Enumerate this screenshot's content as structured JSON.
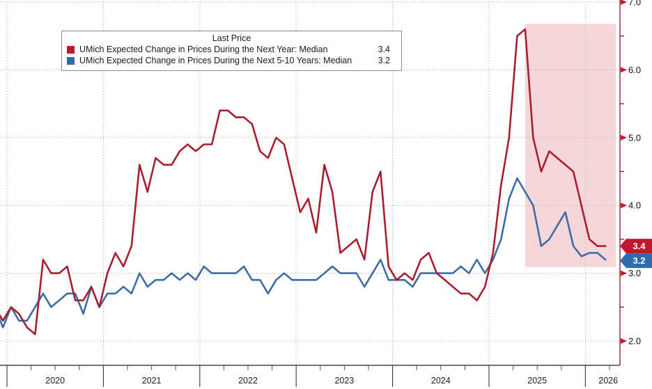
{
  "chart_data": {
    "type": "line",
    "title": "Last Price",
    "legend": {
      "title": "Last Price",
      "position": "top-left",
      "entries": [
        {
          "label": "UMich Expected Change in Prices During the Next Year: Median",
          "value": "3.4",
          "color": "#bb1a2c"
        },
        {
          "label": "UMich Expected Change in Prices During the Next 5-10 Years: Median",
          "value": "3.2",
          "color": "#2e6ca8"
        }
      ]
    },
    "grid": true,
    "x_axis": {
      "start_month": "2019-11",
      "interval": "monthly",
      "year_labels": [
        "2020",
        "2021",
        "2022",
        "2023",
        "2024",
        "2025",
        "2026"
      ]
    },
    "y_axis": {
      "side": "right",
      "ticks": [
        {
          "value": 7.0,
          "label": "7.0"
        },
        {
          "value": 6.0,
          "label": "6.0"
        },
        {
          "value": 5.0,
          "label": "5.0"
        },
        {
          "value": 4.0,
          "label": "4.0"
        },
        {
          "value": 3.0,
          "label": "3.0"
        },
        {
          "value": 2.0,
          "label": "2.0"
        }
      ],
      "minor_ticks": [
        6.5,
        5.5,
        4.5,
        3.5,
        2.5
      ],
      "axis_color": "#8a2732",
      "arrow_color": "#c01b2d"
    },
    "highlight_region": {
      "from_month": "2025-05",
      "to_month": "2026-04",
      "value_top": 6.68,
      "value_bottom": 3.09,
      "color": "#f6d7d9"
    },
    "series": [
      {
        "name": "UMich Expected Change in Prices During the Next Year: Median",
        "color": "#a71e2f",
        "badge_color": "#c01b2d",
        "last_value_label": "3.4",
        "start_month": "2019-11",
        "values": [
          2.5,
          2.3,
          2.5,
          2.4,
          2.2,
          2.1,
          3.2,
          3.0,
          3.0,
          3.1,
          2.6,
          2.6,
          2.8,
          2.5,
          3.0,
          3.3,
          3.1,
          3.4,
          4.6,
          4.2,
          4.7,
          4.6,
          4.6,
          4.8,
          4.9,
          4.8,
          4.9,
          4.9,
          5.4,
          5.4,
          5.3,
          5.3,
          5.2,
          4.8,
          4.7,
          5.0,
          4.9,
          4.4,
          3.9,
          4.1,
          3.6,
          4.6,
          4.2,
          3.3,
          3.4,
          3.5,
          3.2,
          4.2,
          4.5,
          3.1,
          2.9,
          3.0,
          2.9,
          3.2,
          3.3,
          3.0,
          2.9,
          2.8,
          2.7,
          2.7,
          2.6,
          2.8,
          3.3,
          4.3,
          5.0,
          6.5,
          6.6,
          5.0,
          4.5,
          4.8,
          4.7,
          4.6,
          4.5,
          4.0,
          3.5,
          3.4,
          3.4
        ]
      },
      {
        "name": "UMich Expected Change in Prices During the Next 5-10 Years: Median",
        "color": "#3e6ca4",
        "badge_color": "#2e6cb2",
        "last_value_label": "3.2",
        "start_month": "2019-11",
        "values": [
          2.5,
          2.2,
          2.5,
          2.3,
          2.3,
          2.5,
          2.7,
          2.5,
          2.6,
          2.7,
          2.7,
          2.4,
          2.8,
          2.5,
          2.7,
          2.7,
          2.8,
          2.7,
          3.0,
          2.8,
          2.9,
          2.9,
          3.0,
          2.9,
          3.0,
          2.9,
          3.1,
          3.0,
          3.0,
          3.0,
          3.0,
          3.1,
          2.9,
          2.9,
          2.7,
          2.9,
          3.0,
          2.9,
          2.9,
          2.9,
          2.9,
          3.0,
          3.1,
          3.0,
          3.0,
          3.0,
          2.8,
          3.0,
          3.2,
          2.9,
          2.9,
          2.9,
          2.8,
          3.0,
          3.0,
          3.0,
          3.0,
          3.0,
          3.1,
          3.0,
          3.2,
          3.0,
          3.2,
          3.5,
          4.1,
          4.4,
          4.2,
          4.0,
          3.4,
          3.5,
          3.7,
          3.9,
          3.4,
          3.25,
          3.3,
          3.3,
          3.2
        ]
      }
    ]
  }
}
